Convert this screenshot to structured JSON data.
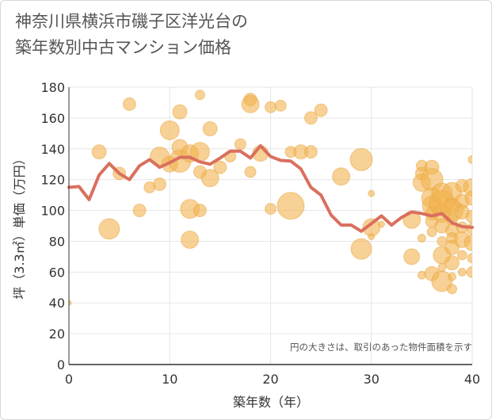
{
  "title": {
    "line1": "神奈川県横浜市磯子区洋光台の",
    "line2": "築年数別中古マンション価格"
  },
  "note": "円の大きさは、取引のあった物件面積を示す",
  "colors": {
    "bubble_fill": "#f2b24e",
    "bubble_stroke": "#e7a33c",
    "line": "#d9705e",
    "grid": "#e6e6e6",
    "axis": "#333333"
  },
  "chart_data": {
    "type": "scatter",
    "title": "神奈川県横浜市磯子区洋光台の築年数別中古マンション価格",
    "xlabel": "築年数（年）",
    "ylabel": "坪（3.3㎡）単価（万円）",
    "xlim": [
      0,
      40
    ],
    "ylim": [
      0,
      180
    ],
    "xticks": [
      0,
      10,
      20,
      30,
      40
    ],
    "yticks": [
      0,
      20,
      40,
      60,
      80,
      100,
      120,
      140,
      160,
      180
    ],
    "grid": true,
    "note": "円の大きさは、取引のあった物件面積を示す",
    "series": [
      {
        "type": "line",
        "points": [
          [
            0,
            115
          ],
          [
            1,
            115.5
          ],
          [
            2,
            107
          ],
          [
            3,
            123
          ],
          [
            4,
            130.5
          ],
          [
            5,
            124
          ],
          [
            6,
            120
          ],
          [
            7,
            129
          ],
          [
            8,
            133
          ],
          [
            9,
            128
          ],
          [
            10,
            131
          ],
          [
            11,
            134.5
          ],
          [
            12,
            134.5
          ],
          [
            13,
            131.5
          ],
          [
            14,
            130
          ],
          [
            15,
            134
          ],
          [
            16,
            138.5
          ],
          [
            17,
            138.5
          ],
          [
            18,
            134
          ],
          [
            19,
            142
          ],
          [
            20,
            135
          ],
          [
            21,
            132.5
          ],
          [
            22,
            132
          ],
          [
            23,
            127
          ],
          [
            24,
            115
          ],
          [
            25,
            110
          ],
          [
            26,
            97
          ],
          [
            27,
            90.5
          ],
          [
            28,
            90.5
          ],
          [
            29,
            86.5
          ],
          [
            30,
            91.5
          ],
          [
            31,
            96.5
          ],
          [
            32,
            90.5
          ],
          [
            33,
            95.5
          ],
          [
            34,
            99
          ],
          [
            35,
            98
          ],
          [
            36,
            96.5
          ],
          [
            37,
            98
          ],
          [
            38,
            92
          ],
          [
            39,
            89.5
          ],
          [
            40,
            89
          ]
        ]
      },
      {
        "type": "bubble",
        "points": [
          [
            0,
            40,
            3
          ],
          [
            3,
            138,
            9
          ],
          [
            4,
            88,
            13
          ],
          [
            5,
            124,
            8
          ],
          [
            6,
            169,
            8
          ],
          [
            7,
            100,
            8
          ],
          [
            8,
            115,
            7
          ],
          [
            9,
            117,
            8
          ],
          [
            9,
            135,
            12
          ],
          [
            10,
            152,
            12
          ],
          [
            10,
            130,
            10
          ],
          [
            11,
            164,
            9
          ],
          [
            11,
            141,
            10
          ],
          [
            11,
            132,
            14
          ],
          [
            12,
            137,
            11
          ],
          [
            12,
            101,
            12
          ],
          [
            12,
            81,
            11
          ],
          [
            13,
            175,
            6
          ],
          [
            13,
            125,
            8
          ],
          [
            13,
            100,
            8
          ],
          [
            13,
            138,
            12
          ],
          [
            14,
            153,
            9
          ],
          [
            14,
            121,
            11
          ],
          [
            15,
            128,
            8
          ],
          [
            16,
            135,
            7
          ],
          [
            17,
            143,
            7
          ],
          [
            18,
            172,
            8
          ],
          [
            18,
            169,
            11
          ],
          [
            18,
            125,
            7
          ],
          [
            19,
            137,
            10
          ],
          [
            20,
            167,
            7
          ],
          [
            20,
            101,
            7
          ],
          [
            21,
            168,
            7
          ],
          [
            22,
            103,
            17
          ],
          [
            22,
            138,
            7
          ],
          [
            23,
            138,
            9
          ],
          [
            24,
            160,
            8
          ],
          [
            24,
            138,
            8
          ],
          [
            25,
            165,
            8
          ],
          [
            27,
            122,
            11
          ],
          [
            29,
            75,
            13
          ],
          [
            29,
            133,
            14
          ],
          [
            30,
            111,
            4
          ],
          [
            30,
            89,
            11
          ],
          [
            30,
            83,
            4
          ],
          [
            31,
            91,
            4
          ],
          [
            34,
            94,
            11
          ],
          [
            34,
            70,
            10
          ],
          [
            35,
            129,
            7
          ],
          [
            35,
            124,
            8
          ],
          [
            35,
            118,
            11
          ],
          [
            35,
            58,
            5
          ],
          [
            36,
            128,
            9
          ],
          [
            36,
            120,
            14
          ],
          [
            36,
            108,
            13
          ],
          [
            36,
            103,
            12
          ],
          [
            36,
            98,
            8
          ],
          [
            36,
            93,
            8
          ],
          [
            36,
            59,
            9
          ],
          [
            37,
            111,
            13
          ],
          [
            37,
            105,
            16
          ],
          [
            37,
            98,
            11
          ],
          [
            37,
            90,
            9
          ],
          [
            37,
            80,
            6
          ],
          [
            37,
            71,
            11
          ],
          [
            37,
            54,
            13
          ],
          [
            38,
            112,
            12
          ],
          [
            38,
            103,
            10
          ],
          [
            38,
            100,
            14
          ],
          [
            38,
            94,
            7
          ],
          [
            38,
            87,
            8
          ],
          [
            38,
            82,
            7
          ],
          [
            38,
            76,
            9
          ],
          [
            38,
            66,
            9
          ],
          [
            38,
            49,
            6
          ],
          [
            39,
            116,
            8
          ],
          [
            39,
            106,
            9
          ],
          [
            39,
            99,
            9
          ],
          [
            39,
            89,
            7
          ],
          [
            39,
            81,
            10
          ],
          [
            39,
            71,
            6
          ],
          [
            40,
            133,
            5
          ],
          [
            40,
            115,
            11
          ],
          [
            40,
            108,
            9
          ],
          [
            40,
            96,
            8
          ],
          [
            40,
            88,
            7
          ],
          [
            40,
            79,
            10
          ],
          [
            40,
            69,
            6
          ],
          [
            40,
            60,
            7
          ],
          [
            39,
            60,
            5
          ],
          [
            38,
            57,
            5
          ],
          [
            37,
            63,
            5
          ],
          [
            36,
            86,
            6
          ],
          [
            35,
            82,
            5
          ]
        ]
      }
    ]
  }
}
